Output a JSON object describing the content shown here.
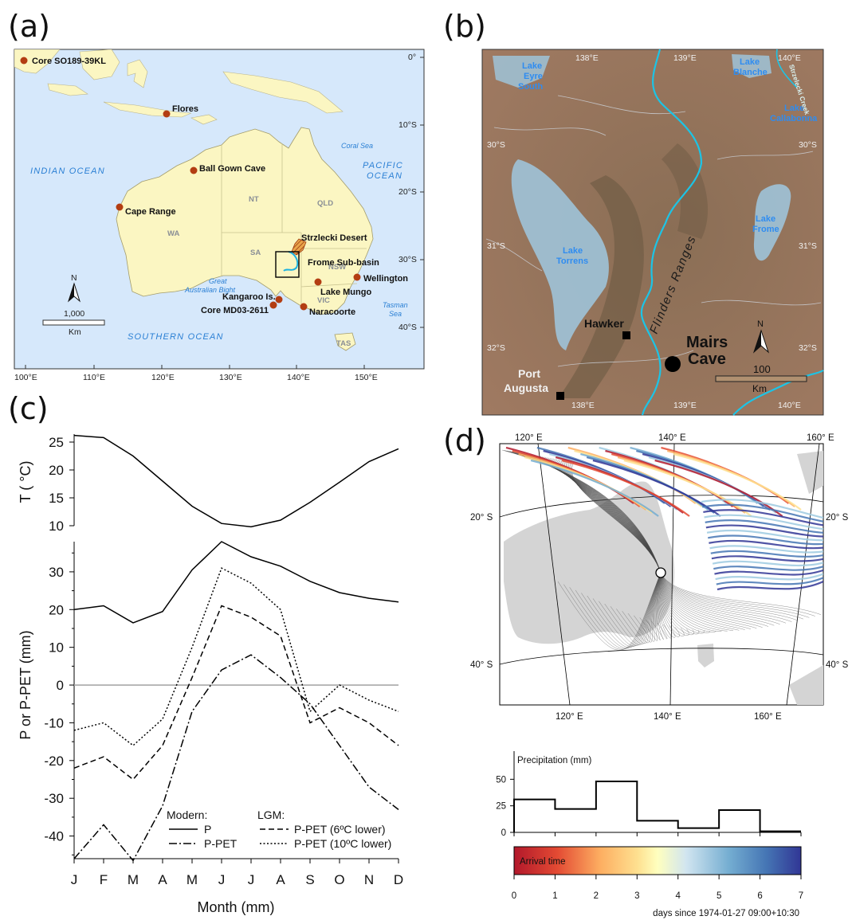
{
  "panels": {
    "a": "(a)",
    "b": "(b)",
    "c": "(c)",
    "d": "(d)"
  },
  "map_a": {
    "lon_ticks": [
      "100°E",
      "110°E",
      "120°E",
      "130°E",
      "140°E",
      "150°E"
    ],
    "lat_ticks": [
      "0°",
      "10°S",
      "20°S",
      "30°S",
      "40°S"
    ],
    "oceans": [
      "INDIAN OCEAN",
      "PACIFIC",
      "OCEAN",
      "SOUTHERN OCEAN"
    ],
    "seas": [
      "Coral Sea",
      "Great",
      "Australian Bight",
      "Tasman",
      "Sea"
    ],
    "states": [
      "NT",
      "QLD",
      "WA",
      "SA",
      "NSW",
      "VIC",
      "TAS"
    ],
    "sites": [
      "Core SO189-39KL",
      "Flores",
      "Ball Gown Cave",
      "Cape Range",
      "Strzlecki Desert",
      "Frome Sub-basin",
      "Wellington",
      "Lake Mungo",
      "Kangaroo Is.",
      "Core MD03-2611",
      "Naracoorte"
    ],
    "scale_value": "1,000",
    "scale_unit": "Km",
    "north": "N",
    "colors": {
      "ocean": "#d6e8fb",
      "land": "#fbf6c2",
      "site": "#b33d12"
    }
  },
  "map_b": {
    "lon_top": [
      "138°E",
      "139°E",
      "140°E"
    ],
    "lon_bottom": [
      "138°E",
      "139°E",
      "140°E"
    ],
    "lat_left": [
      "30°S",
      "31°S",
      "32°S"
    ],
    "lat_right": [
      "30°S",
      "31°S",
      "32°S"
    ],
    "lakes": {
      "eyre_1": "Lake",
      "eyre_2": "Eyre",
      "eyre_3": "South",
      "blanche_1": "Lake",
      "blanche_2": "Blanche",
      "callabonna_1": "Lake",
      "callabonna_2": "Callabonna",
      "torrens_1": "Lake",
      "torrens_2": "Torrens",
      "frome_1": "Lake",
      "frome_2": "Frome"
    },
    "creek": "Strzelecki Creek",
    "ranges": "Flinders Ranges",
    "towns": {
      "hawker": "Hawker",
      "port": "Port",
      "augusta": "Augusta"
    },
    "cave_1": "Mairs",
    "cave_2": "Cave",
    "north": "N",
    "scale_value": "100",
    "scale_unit": "Km"
  },
  "chart_data": [
    {
      "type": "line",
      "ylabel": "T ( °C)",
      "categories": [
        "J",
        "F",
        "M",
        "A",
        "M",
        "J",
        "J",
        "A",
        "S",
        "O",
        "N",
        "D"
      ],
      "ylim": [
        10,
        26
      ],
      "yticks": [
        "10",
        "15",
        "20",
        "25"
      ],
      "series": [
        {
          "values": [
            26.2,
            25.8,
            22.5,
            18.0,
            13.5,
            10.4,
            9.8,
            11.0,
            14.2,
            17.8,
            21.5,
            23.8
          ]
        }
      ]
    },
    {
      "type": "line",
      "xlabel": "Month (mm)",
      "ylabel": "P or P-PET (mm)",
      "categories": [
        "J",
        "F",
        "M",
        "A",
        "M",
        "J",
        "J",
        "A",
        "S",
        "O",
        "N",
        "D"
      ],
      "ylim": [
        -46,
        38
      ],
      "yticks": [
        "30",
        "20",
        "10",
        "0",
        "-10",
        "-20",
        "-30",
        "-40"
      ],
      "legend": {
        "modern_title": "Modern:",
        "lgm_title": "LGM:"
      },
      "series": [
        {
          "name": "P",
          "style": "solid",
          "values": [
            20,
            21,
            16.5,
            19.5,
            30.5,
            38,
            34,
            31.5,
            27.5,
            24.5,
            23,
            22
          ]
        },
        {
          "name": "P-PET",
          "style": "dashdot",
          "values": [
            -46,
            -37,
            -46.5,
            -32,
            -7,
            4,
            8,
            2,
            -5,
            -16,
            -27,
            -33
          ]
        },
        {
          "name": "P-PET (6ºC lower)",
          "style": "dashed",
          "values": [
            -22,
            -19,
            -25,
            -16,
            2,
            21,
            18,
            13,
            -10,
            -6,
            -10,
            -16
          ]
        },
        {
          "name": "P-PET (10ºC lower)",
          "style": "dotted",
          "values": [
            -12,
            -10,
            -16,
            -9,
            10,
            31,
            27,
            20,
            -7,
            0,
            -4,
            -7
          ]
        }
      ]
    },
    {
      "type": "area",
      "ylabel": "Precipitation (mm)",
      "xlim": [
        0,
        7
      ],
      "ylim": [
        0,
        60
      ],
      "yticks": [
        "0",
        "25",
        "50"
      ],
      "steps": [
        31,
        22,
        48,
        11,
        4,
        21,
        1
      ],
      "colorbar": {
        "label": "Arrival time",
        "ticks": [
          "0",
          "1",
          "2",
          "3",
          "4",
          "5",
          "6",
          "7"
        ],
        "xlabel": "days since 1974-01-27 09:00+10:30"
      }
    }
  ],
  "map_d": {
    "lon_top": [
      "120° E",
      "140° E",
      "160° E"
    ],
    "lon_bottom": [
      "120° E",
      "140° E",
      "160° E"
    ],
    "lat_left": [
      "20° S",
      "40° S"
    ],
    "lat_right": [
      "20° S",
      "40° S"
    ]
  }
}
